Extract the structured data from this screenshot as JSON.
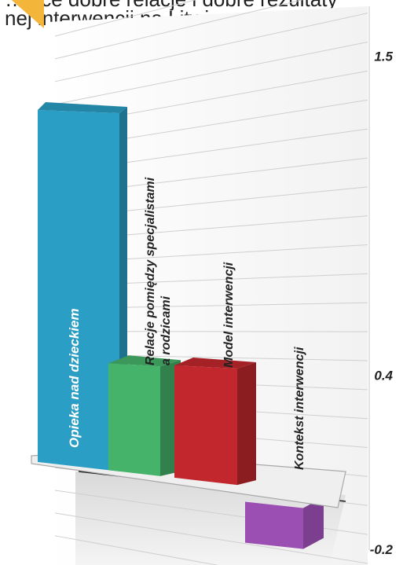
{
  "caption": {
    "line1": "…jące dobre relacje i dobre rezultaty",
    "line2": "nej interwencji na Litwie."
  },
  "chart_data": {
    "type": "bar",
    "categories": [
      "Opieka nad dzieckiem",
      "Relacje pomiędzy specjalistami a rodzicami",
      "Model interwencji",
      "Kontekst interwencji"
    ],
    "values": [
      1.5,
      0.4,
      0.4,
      -0.2
    ],
    "ticks": [
      "1.5",
      "0.4",
      "-0.2"
    ],
    "ylim": [
      -0.25,
      1.6
    ],
    "grid": true,
    "colors": [
      "#2a9ec4",
      "#45b36a",
      "#c1272d",
      "#9b4fb3"
    ]
  }
}
